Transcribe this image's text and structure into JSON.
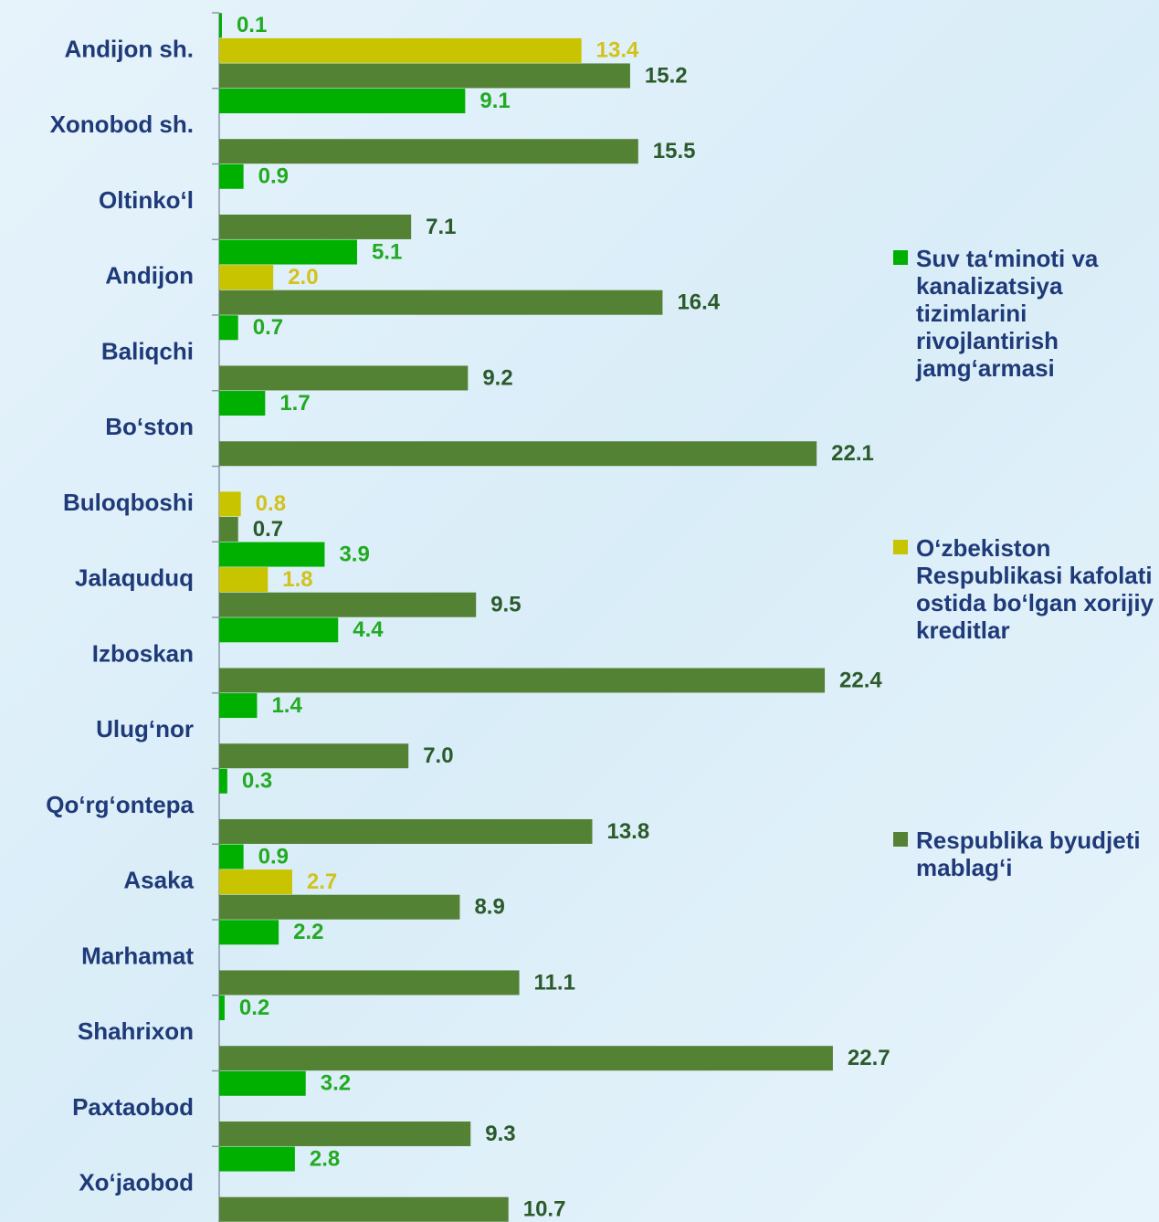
{
  "chart_data": {
    "type": "hbar",
    "categories": [
      "Andijon sh.",
      "Xonobod sh.",
      "Oltinko‘l",
      "Andijon",
      "Baliqchi",
      "Bo‘ston",
      "Buloqboshi",
      "Jalaquduq",
      "Izboskan",
      "Ulug‘nor",
      "Qo‘rg‘ontepa",
      "Asaka",
      "Marhamat",
      "Shahrixon",
      "Paxtaobod",
      "Xo‘jaobod"
    ],
    "series": [
      {
        "name": "Suv ta‘minoti va kanalizatsiya tizimlarini rivojlantirish jamg‘armasi",
        "color": "#00b000",
        "label_color": "#22aa22",
        "values": [
          0.1,
          9.1,
          0.9,
          5.1,
          0.7,
          1.7,
          null,
          3.9,
          4.4,
          1.4,
          0.3,
          0.9,
          2.2,
          0.2,
          3.2,
          2.8
        ],
        "value_labels": [
          "0.1",
          "9.1",
          "0.9",
          "5.1",
          "0.7",
          "1.7",
          null,
          "3.9",
          "4.4",
          "1.4",
          "0.3",
          "0.9",
          "2.2",
          "0.2",
          "3.2",
          "2.8"
        ]
      },
      {
        "name": "O‘zbekiston Respublikasi kafolati ostida bo‘lgan xorijiy kreditlar",
        "color": "#c8c400",
        "label_color": "#d2c21c",
        "values": [
          13.4,
          null,
          null,
          2.0,
          null,
          null,
          0.8,
          1.8,
          null,
          null,
          null,
          2.7,
          null,
          null,
          null,
          null
        ],
        "value_labels": [
          "13.4",
          null,
          null,
          "2.0",
          null,
          null,
          "0.8",
          "1.8",
          null,
          null,
          null,
          "2.7",
          null,
          null,
          null,
          null
        ]
      },
      {
        "name": "Respublika byudjeti mablag‘i",
        "color": "#548235",
        "label_color": "#2b5a2b",
        "values": [
          15.2,
          15.5,
          7.1,
          16.4,
          9.2,
          22.1,
          0.7,
          9.5,
          22.4,
          7.0,
          13.8,
          8.9,
          11.1,
          22.7,
          9.3,
          10.7
        ],
        "value_labels": [
          "15.2",
          "15.5",
          "7.1",
          "16.4",
          "9.2",
          "22.1",
          "0.7",
          "9.5",
          "22.4",
          "7.0",
          "13.8",
          "8.9",
          "11.1",
          "22.7",
          "9.3",
          "10.7"
        ]
      }
    ],
    "legend": "right"
  }
}
